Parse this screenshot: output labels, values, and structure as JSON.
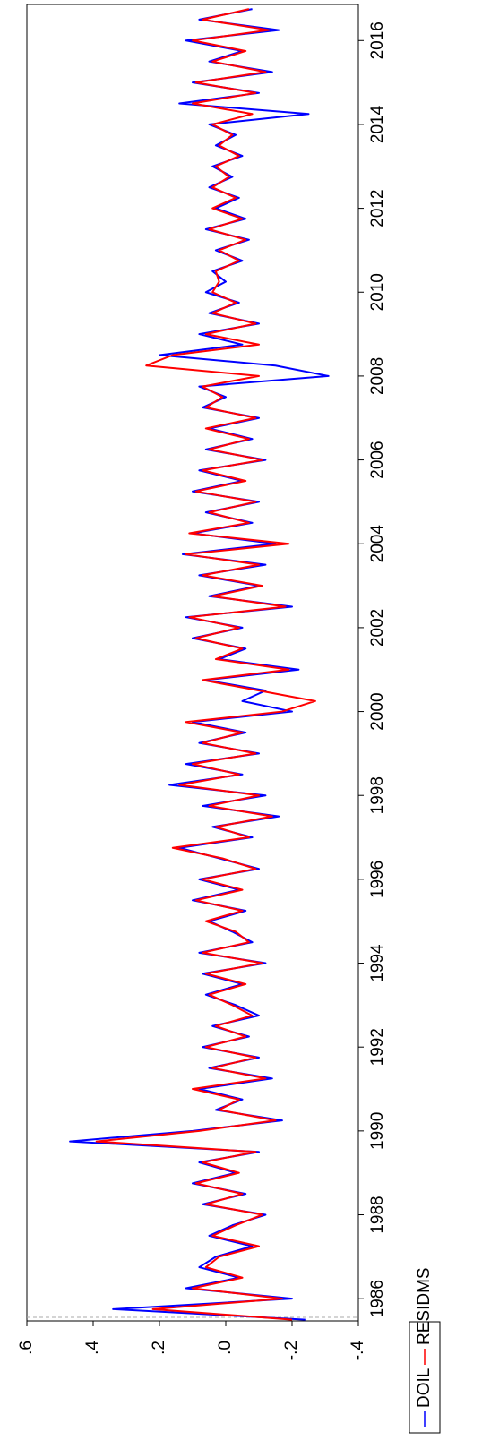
{
  "chart_data": {
    "type": "line",
    "x": [
      1985.5,
      1985.75,
      1986,
      1986.25,
      1986.5,
      1986.75,
      1987,
      1987.25,
      1987.5,
      1987.75,
      1988,
      1988.25,
      1988.5,
      1988.75,
      1989,
      1989.25,
      1989.5,
      1989.75,
      1990,
      1990.25,
      1990.5,
      1990.75,
      1991,
      1991.25,
      1991.5,
      1991.75,
      1992,
      1992.25,
      1992.5,
      1992.75,
      1993,
      1993.25,
      1993.5,
      1993.75,
      1994,
      1994.25,
      1994.5,
      1994.75,
      1995,
      1995.25,
      1995.5,
      1995.75,
      1996,
      1996.25,
      1996.5,
      1996.75,
      1997,
      1997.25,
      1997.5,
      1997.75,
      1998,
      1998.25,
      1998.5,
      1998.75,
      1999,
      1999.25,
      1999.5,
      1999.75,
      2000,
      2000.25,
      2000.5,
      2000.75,
      2001,
      2001.25,
      2001.5,
      2001.75,
      2002,
      2002.25,
      2002.5,
      2002.75,
      2003,
      2003.25,
      2003.5,
      2003.75,
      2004,
      2004.25,
      2004.5,
      2004.75,
      2005,
      2005.25,
      2005.5,
      2005.75,
      2006,
      2006.25,
      2006.5,
      2006.75,
      2007,
      2007.25,
      2007.5,
      2007.75,
      2008,
      2008.25,
      2008.5,
      2008.75,
      2009,
      2009.25,
      2009.5,
      2009.75,
      2010,
      2010.25,
      2010.5,
      2010.75,
      2011,
      2011.25,
      2011.5,
      2011.75,
      2012,
      2012.25,
      2012.5,
      2012.75,
      2013,
      2013.25,
      2013.5,
      2013.75,
      2014,
      2014.25,
      2014.5,
      2014.75,
      2015,
      2015.25,
      2015.5,
      2015.75,
      2016,
      2016.25,
      2016.5,
      2016.75
    ],
    "series": [
      {
        "name": "DOIL",
        "color": "#0000ff",
        "values": [
          -0.24,
          0.34,
          -0.2,
          0.12,
          -0.04,
          0.08,
          0.03,
          -0.08,
          0.05,
          -0.02,
          -0.12,
          0.07,
          -0.06,
          0.1,
          -0.03,
          0.08,
          -0.1,
          0.47,
          0.1,
          -0.17,
          0.03,
          -0.05,
          0.08,
          -0.14,
          0.05,
          -0.1,
          0.07,
          -0.07,
          0.04,
          -0.1,
          -0.03,
          0.06,
          -0.05,
          0.07,
          -0.12,
          0.08,
          -0.08,
          -0.02,
          0.05,
          -0.06,
          0.1,
          -0.04,
          0.08,
          -0.1,
          0.02,
          0.14,
          -0.08,
          0.04,
          -0.16,
          0.07,
          -0.12,
          0.17,
          -0.05,
          0.12,
          -0.1,
          0.08,
          -0.06,
          0.1,
          -0.2,
          -0.05,
          -0.12,
          0.06,
          -0.22,
          0.02,
          -0.06,
          0.1,
          -0.05,
          0.12,
          -0.2,
          0.05,
          -0.1,
          0.08,
          -0.12,
          0.13,
          -0.15,
          0.1,
          -0.08,
          0.06,
          -0.1,
          0.1,
          -0.05,
          0.08,
          -0.12,
          0.06,
          -0.08,
          0.05,
          -0.1,
          0.07,
          0.0,
          0.08,
          -0.31,
          -0.15,
          0.2,
          -0.05,
          0.08,
          -0.1,
          0.05,
          -0.04,
          0.06,
          0.0,
          0.04,
          -0.05,
          0.03,
          -0.07,
          0.06,
          -0.06,
          0.03,
          -0.04,
          0.05,
          -0.02,
          0.04,
          -0.05,
          0.03,
          -0.03,
          0.05,
          -0.25,
          0.14,
          -0.1,
          0.1,
          -0.14,
          0.05,
          -0.05,
          0.12,
          -0.16,
          0.08,
          -0.08
        ]
      },
      {
        "name": "RESIDMS",
        "color": "#ff0000",
        "values": [
          -0.2,
          0.22,
          -0.17,
          0.1,
          -0.05,
          0.06,
          0.02,
          -0.1,
          0.04,
          -0.03,
          -0.11,
          0.06,
          -0.05,
          0.09,
          -0.04,
          0.07,
          -0.09,
          0.39,
          0.08,
          -0.15,
          0.02,
          -0.04,
          0.1,
          -0.12,
          0.04,
          -0.09,
          0.06,
          -0.06,
          0.03,
          -0.08,
          -0.02,
          0.05,
          -0.06,
          0.06,
          -0.11,
          0.07,
          -0.07,
          -0.03,
          0.06,
          -0.05,
          0.09,
          -0.05,
          0.07,
          -0.09,
          0.01,
          0.16,
          -0.07,
          0.03,
          -0.14,
          0.05,
          -0.1,
          0.14,
          -0.04,
          0.1,
          -0.09,
          0.07,
          -0.05,
          0.12,
          -0.17,
          -0.27,
          -0.1,
          0.07,
          -0.19,
          0.03,
          -0.05,
          0.09,
          -0.04,
          0.11,
          -0.18,
          0.04,
          -0.11,
          0.07,
          -0.1,
          0.12,
          -0.19,
          0.11,
          -0.07,
          0.05,
          -0.09,
          0.09,
          -0.06,
          0.07,
          -0.11,
          0.05,
          -0.07,
          0.06,
          -0.09,
          0.06,
          0.01,
          0.07,
          -0.1,
          0.24,
          0.16,
          -0.1,
          0.06,
          -0.09,
          0.04,
          -0.03,
          0.04,
          0.02,
          0.03,
          -0.04,
          0.02,
          -0.06,
          0.05,
          -0.05,
          0.04,
          -0.03,
          0.04,
          -0.01,
          0.03,
          -0.04,
          0.02,
          -0.02,
          0.04,
          -0.08,
          0.1,
          -0.09,
          0.09,
          -0.12,
          0.04,
          -0.06,
          0.1,
          -0.13,
          0.07,
          -0.07
        ]
      }
    ],
    "xlim": [
      1985.47,
      2016.86
    ],
    "xticks": [
      1986,
      1988,
      1990,
      1992,
      1994,
      1996,
      1998,
      2000,
      2002,
      2004,
      2006,
      2008,
      2010,
      2012,
      2014,
      2016
    ],
    "ylim": [
      -0.4,
      0.6
    ],
    "yticks": [
      {
        "value": 0.6,
        "label": ".6"
      },
      {
        "value": 0.4,
        "label": ".4"
      },
      {
        "value": 0.2,
        "label": ".2"
      },
      {
        "value": 0,
        "label": ".0"
      },
      {
        "value": -0.2,
        "label": "-.2"
      },
      {
        "value": -0.4,
        "label": "-.4"
      }
    ],
    "legend": "bottom"
  }
}
